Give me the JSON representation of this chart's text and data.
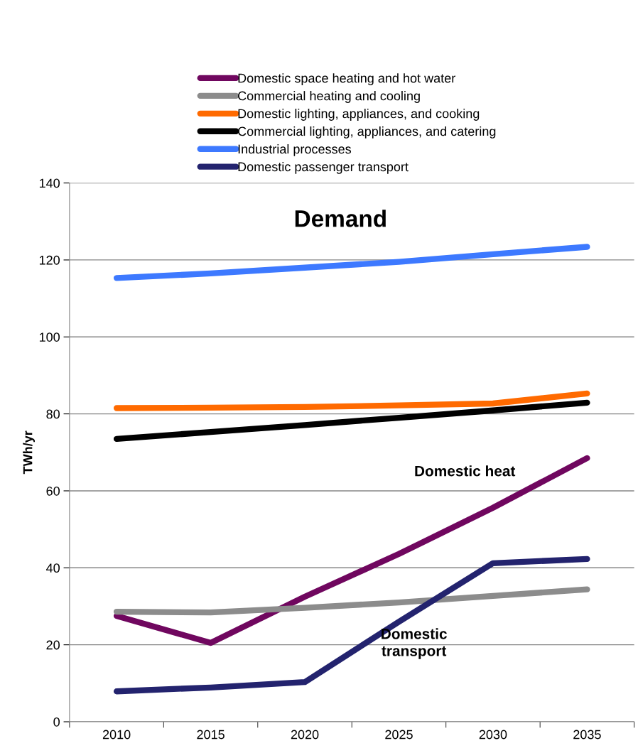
{
  "chart_data": {
    "type": "line",
    "title": "Demand",
    "ylabel": "TWh/yr",
    "categories": [
      "2010",
      "2015",
      "2020",
      "2025",
      "2030",
      "2035"
    ],
    "series": [
      {
        "name": "Domestic space heating and hot water",
        "color": "#70075f",
        "values": [
          27.5,
          20.5,
          32.5,
          43.6,
          55.6,
          68.5
        ]
      },
      {
        "name": "Commercial heating and cooling",
        "color": "#8c8c8c",
        "values": [
          28.6,
          28.4,
          29.6,
          31.0,
          32.7,
          34.4
        ]
      },
      {
        "name": "Domestic lighting, appliances, and cooking",
        "color": "#ff6a00",
        "values": [
          81.5,
          81.6,
          81.8,
          82.2,
          82.7,
          85.3
        ]
      },
      {
        "name": "Commercial lighting, appliances, and catering",
        "color": "#000000",
        "values": [
          73.5,
          75.3,
          77.1,
          79.0,
          80.9,
          82.9
        ]
      },
      {
        "name": "Industrial processes",
        "color": "#3d79ff",
        "values": [
          115.3,
          116.5,
          118.0,
          119.5,
          121.5,
          123.4
        ]
      },
      {
        "name": "Domestic passenger transport",
        "color": "#23236e",
        "values": [
          7.9,
          8.9,
          10.3,
          26.0,
          41.2,
          42.3
        ]
      }
    ],
    "annotations": [
      "Domestic heat",
      "Domestic\ntransport"
    ],
    "ylim": [
      0,
      140
    ],
    "yticks": [
      0,
      20,
      40,
      60,
      80,
      100,
      120,
      140
    ],
    "grid": "y",
    "legend": "top",
    "marker": "none",
    "line_style": "solid"
  }
}
